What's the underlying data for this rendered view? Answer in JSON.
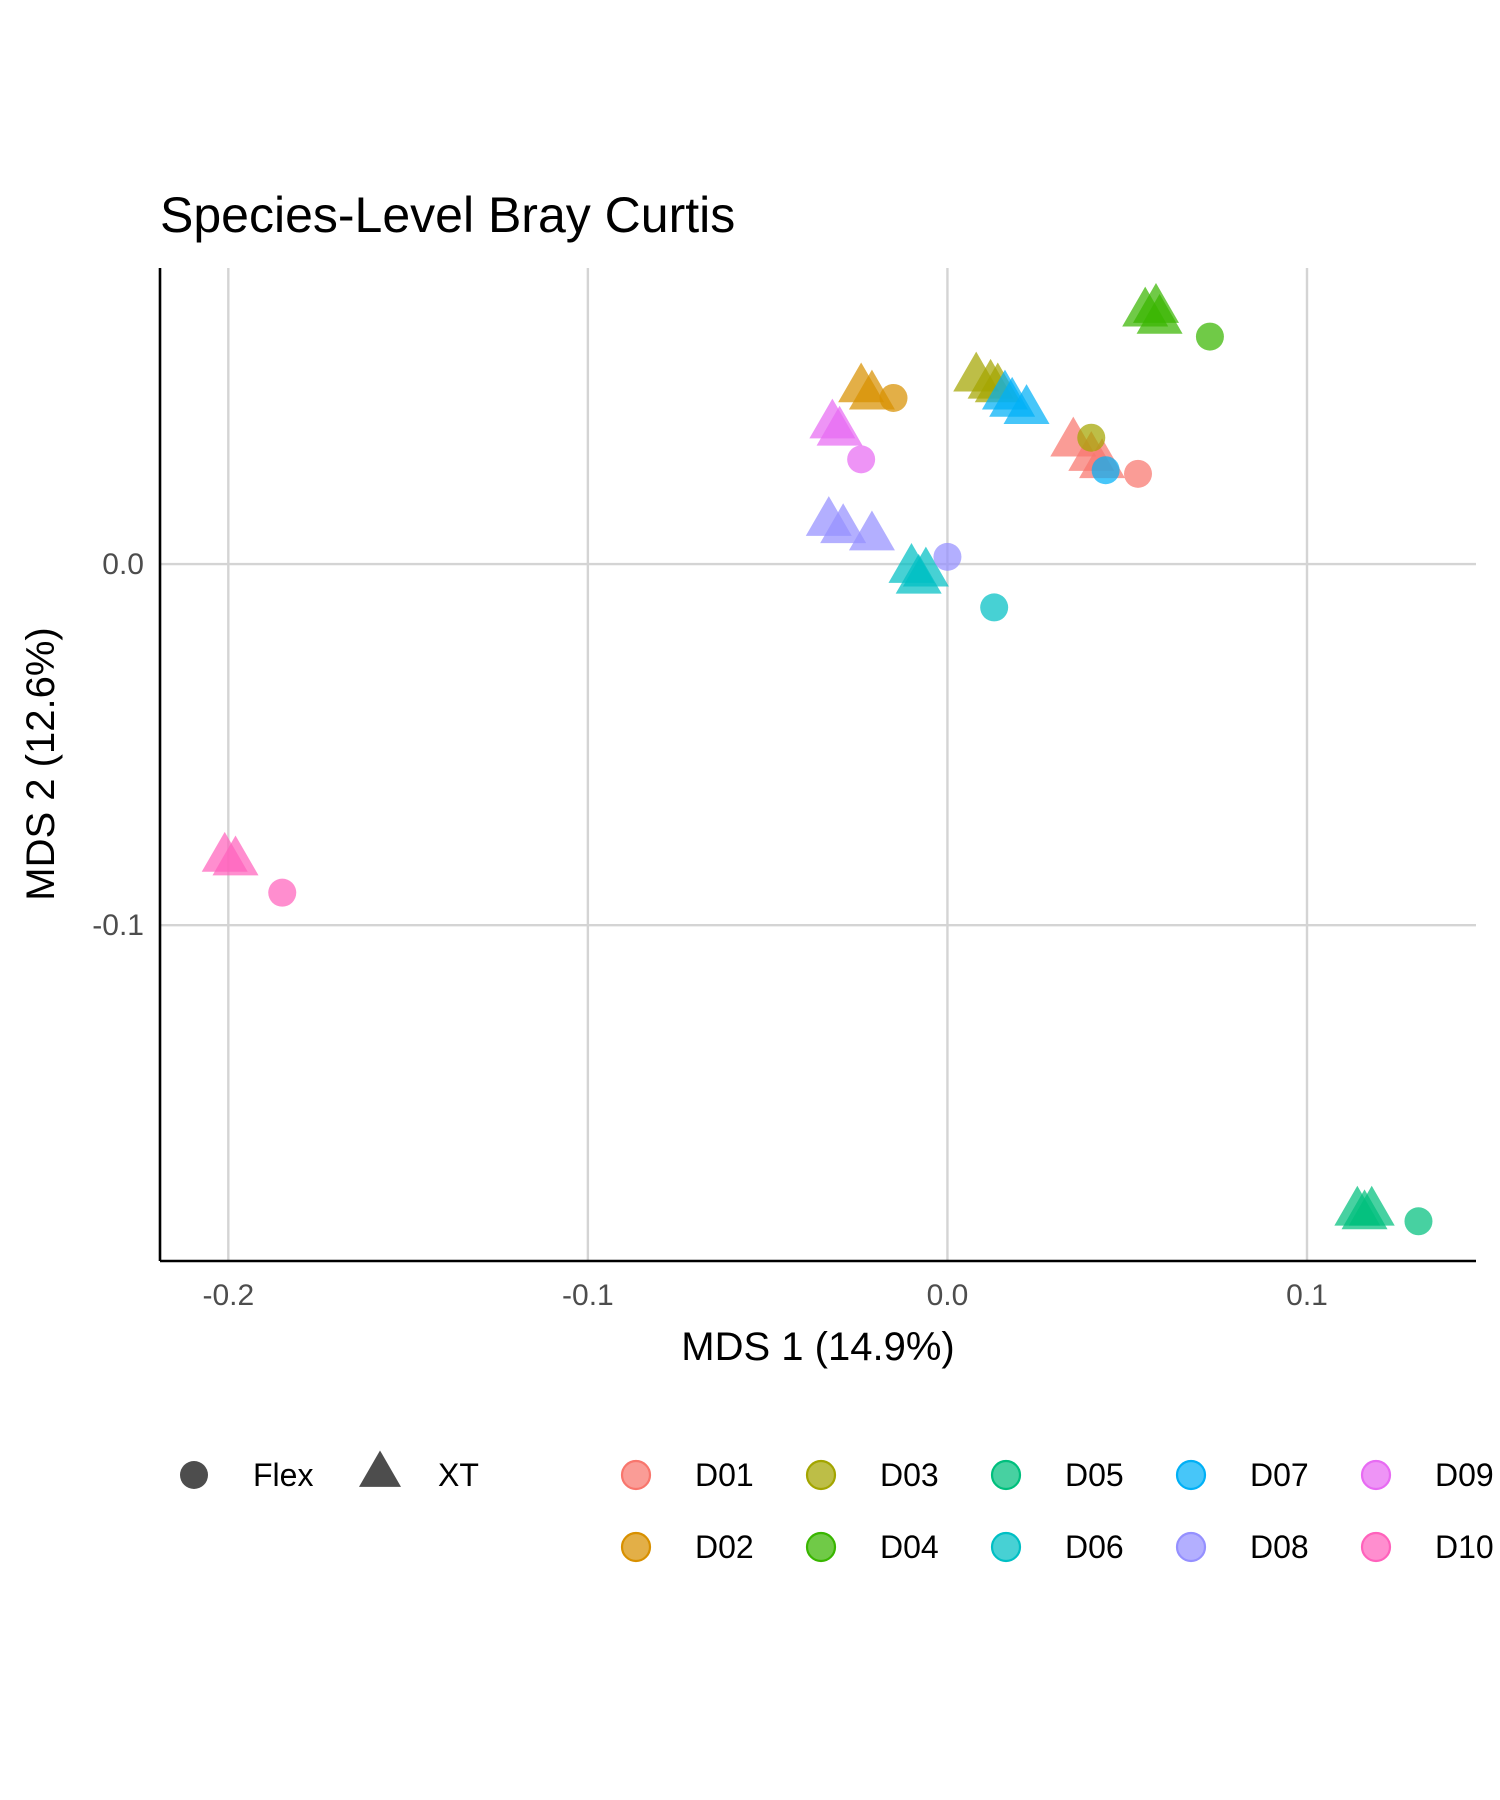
{
  "chart_data": {
    "type": "scatter",
    "title": "Species-Level Bray Curtis",
    "xlabel": "MDS 1 (14.9%)",
    "ylabel": "MDS 2 (12.6%)",
    "xlim": [
      -0.219,
      0.147
    ],
    "ylim": [
      -0.193,
      0.082
    ],
    "x_ticks": [
      -0.2,
      -0.1,
      0.0,
      0.1
    ],
    "x_tick_labels": [
      "-0.2",
      "-0.1",
      "0.0",
      "0.1"
    ],
    "y_ticks": [
      -0.1,
      0.0
    ],
    "y_tick_labels": [
      "-0.1",
      "0.0"
    ],
    "grid": true,
    "legend_position": "bottom",
    "shape_legend": [
      {
        "label": "Flex",
        "shape": "circle"
      },
      {
        "label": "XT",
        "shape": "triangle"
      }
    ],
    "colors": {
      "D01": "#F8766D",
      "D02": "#D89000",
      "D03": "#A3A500",
      "D04": "#39B600",
      "D05": "#00BF7D",
      "D06": "#00BFC4",
      "D07": "#00B0F6",
      "D08": "#9590FF",
      "D09": "#E76BF3",
      "D10": "#FF62BC"
    },
    "series": [
      {
        "name": "D01",
        "flex": [
          [
            0.053,
            0.025
          ]
        ],
        "xt": [
          [
            0.035,
            0.034
          ],
          [
            0.04,
            0.03
          ],
          [
            0.043,
            0.028
          ]
        ]
      },
      {
        "name": "D02",
        "flex": [
          [
            -0.015,
            0.046
          ]
        ],
        "xt": [
          [
            -0.024,
            0.049
          ],
          [
            -0.021,
            0.047
          ]
        ]
      },
      {
        "name": "D03",
        "flex": [
          [
            0.04,
            0.035
          ]
        ],
        "xt": [
          [
            0.008,
            0.052
          ],
          [
            0.012,
            0.05
          ],
          [
            0.014,
            0.049
          ]
        ]
      },
      {
        "name": "D04",
        "flex": [
          [
            0.073,
            0.063
          ]
        ],
        "xt": [
          [
            0.055,
            0.07
          ],
          [
            0.058,
            0.071
          ],
          [
            0.059,
            0.068
          ]
        ]
      },
      {
        "name": "D05",
        "flex": [
          [
            0.131,
            -0.182
          ]
        ],
        "xt": [
          [
            0.114,
            -0.179
          ],
          [
            0.118,
            -0.179
          ],
          [
            0.116,
            -0.18
          ]
        ]
      },
      {
        "name": "D06",
        "flex": [
          [
            0.013,
            -0.012
          ]
        ],
        "xt": [
          [
            -0.01,
            -0.001
          ],
          [
            -0.006,
            -0.002
          ],
          [
            -0.008,
            -0.004
          ]
        ]
      },
      {
        "name": "D07",
        "flex": [
          [
            0.044,
            0.026
          ]
        ],
        "xt": [
          [
            0.016,
            0.047
          ],
          [
            0.018,
            0.045
          ],
          [
            0.022,
            0.043
          ]
        ]
      },
      {
        "name": "D08",
        "flex": [
          [
            0.0,
            0.002
          ]
        ],
        "xt": [
          [
            -0.033,
            0.012
          ],
          [
            -0.029,
            0.01
          ],
          [
            -0.021,
            0.008
          ]
        ]
      },
      {
        "name": "D09",
        "flex": [
          [
            -0.024,
            0.029
          ]
        ],
        "xt": [
          [
            -0.032,
            0.039
          ],
          [
            -0.03,
            0.037
          ]
        ]
      },
      {
        "name": "D10",
        "flex": [
          [
            -0.185,
            -0.091
          ]
        ],
        "xt": [
          [
            -0.201,
            -0.081
          ],
          [
            -0.198,
            -0.082
          ]
        ]
      }
    ]
  }
}
